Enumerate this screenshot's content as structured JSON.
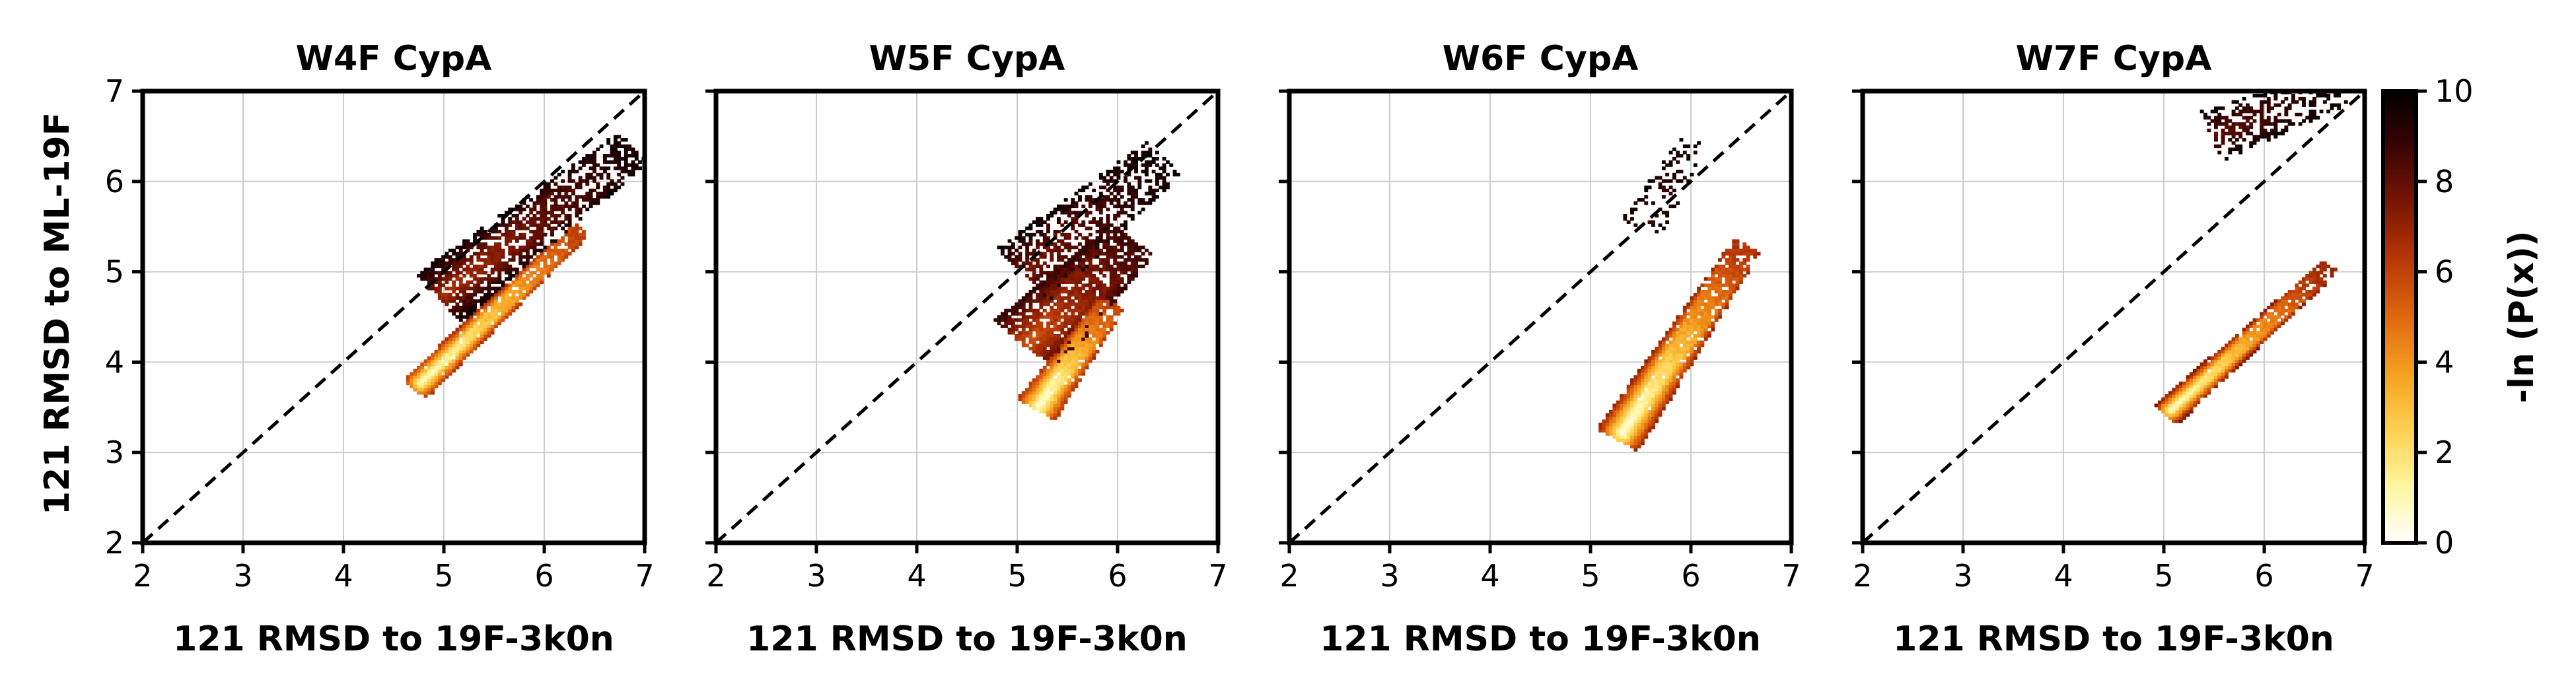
{
  "figure": {
    "ylabel": "121 RMSD to ML-19F",
    "colorbar": {
      "label": "-ln (P(x))",
      "ticks": [
        0,
        2,
        4,
        6,
        8,
        10
      ],
      "range": [
        0,
        10
      ],
      "colormap": "afmhot_r",
      "colors": [
        "#ffffff",
        "#fff6a0",
        "#ffd050",
        "#f5a020",
        "#e06810",
        "#b83806",
        "#7a1604",
        "#3a0402",
        "#000000"
      ]
    }
  },
  "chart_data": [
    {
      "type": "heatmap",
      "title": "W4F CypA",
      "xlabel": "121 RMSD to 19F-3k0n",
      "xlim": [
        2,
        7
      ],
      "ylim": [
        2,
        7
      ],
      "xticks": [
        2,
        3,
        4,
        5,
        6,
        7
      ],
      "yticks": [
        2,
        3,
        4,
        5,
        6,
        7
      ],
      "grid": true,
      "diagonal": "y = x (dashed)",
      "regions": [
        {
          "center": [
            4.75,
            3.75
          ],
          "end": [
            6.3,
            5.4
          ],
          "width": 0.16,
          "min": 0.5,
          "max": 6.5,
          "density": 1.0
        },
        {
          "center": [
            5.0,
            4.75
          ],
          "end": [
            6.8,
            6.3
          ],
          "width": 0.35,
          "min": 6.5,
          "max": 9.8,
          "density": 0.75
        }
      ]
    },
    {
      "type": "heatmap",
      "title": "W5F CypA",
      "xlabel": "121 RMSD to 19F-3k0n",
      "xlim": [
        2,
        7
      ],
      "ylim": [
        2,
        7
      ],
      "xticks": [
        2,
        3,
        4,
        5,
        6,
        7
      ],
      "yticks": [
        2,
        3,
        4,
        5,
        6,
        7
      ],
      "grid": true,
      "diagonal": "y = x (dashed)",
      "regions": [
        {
          "center": [
            5.2,
            3.5
          ],
          "end": [
            5.9,
            4.6
          ],
          "width": 0.22,
          "min": 0.3,
          "max": 6.5,
          "density": 1.0
        },
        {
          "center": [
            5.1,
            4.2
          ],
          "end": [
            6.1,
            5.3
          ],
          "width": 0.42,
          "min": 5.5,
          "max": 9.0,
          "density": 0.85
        },
        {
          "center": [
            5.1,
            5.0
          ],
          "end": [
            6.4,
            6.2
          ],
          "width": 0.4,
          "min": 7.5,
          "max": 9.9,
          "density": 0.6
        }
      ]
    },
    {
      "type": "heatmap",
      "title": "W6F CypA",
      "xlabel": "121 RMSD to 19F-3k0n",
      "xlim": [
        2,
        7
      ],
      "ylim": [
        2,
        7
      ],
      "xticks": [
        2,
        3,
        4,
        5,
        6,
        7
      ],
      "yticks": [
        2,
        3,
        4,
        5,
        6,
        7
      ],
      "grid": true,
      "diagonal": "y = x (dashed)",
      "regions": [
        {
          "center": [
            5.3,
            3.2
          ],
          "end": [
            6.5,
            5.2
          ],
          "width": 0.24,
          "min": 0.2,
          "max": 7.0,
          "density": 1.0
        },
        {
          "center": [
            5.5,
            5.5
          ],
          "end": [
            6.0,
            6.4
          ],
          "width": 0.22,
          "min": 8.5,
          "max": 9.9,
          "density": 0.3
        }
      ]
    },
    {
      "type": "heatmap",
      "title": "W7F CypA",
      "xlabel": "121 RMSD to 19F-3k0n",
      "xlim": [
        2,
        7
      ],
      "ylim": [
        2,
        7
      ],
      "xticks": [
        2,
        3,
        4,
        5,
        6,
        7
      ],
      "yticks": [
        2,
        3,
        4,
        5,
        6,
        7
      ],
      "grid": true,
      "diagonal": "y = x (dashed)",
      "regions": [
        {
          "center": [
            5.05,
            3.45
          ],
          "end": [
            6.6,
            5.0
          ],
          "width": 0.16,
          "min": 0.5,
          "max": 7.5,
          "density": 1.0
        },
        {
          "center": [
            5.5,
            6.5
          ],
          "end": [
            6.7,
            7.0
          ],
          "width": 0.3,
          "min": 8.0,
          "max": 9.9,
          "density": 0.5
        }
      ]
    }
  ]
}
